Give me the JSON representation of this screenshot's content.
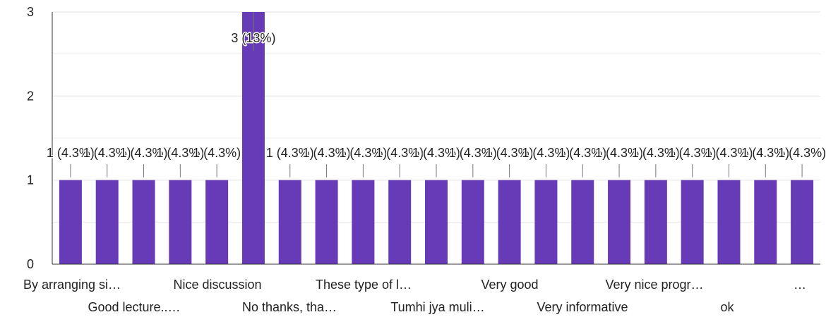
{
  "chart_data": {
    "type": "bar",
    "categories": [
      "By arranging si…",
      "Good lecture..…",
      "",
      "",
      "Nice discussion",
      "",
      "No thanks, tha…",
      "These type of l…",
      "",
      "Tumhi jya muli…",
      "",
      "Very good",
      "",
      "Very informative",
      "Very nice progr…",
      "",
      "ok",
      "",
      "",
      "…",
      ""
    ],
    "values": [
      1,
      1,
      1,
      1,
      1,
      3,
      1,
      1,
      1,
      1,
      1,
      1,
      1,
      1,
      1,
      1,
      1,
      1,
      1,
      1,
      1
    ],
    "data_labels": [
      "1 (4.3%)",
      "1 (4.3%)",
      "1 (4.3%)",
      "1 (4.3%)",
      "1 (4.3%)",
      "3 (13%)",
      "1 (4.3%)",
      "1 (4.3%)",
      "1 (4.3%)",
      "1 (4.3%)",
      "1 (4.3%)",
      "1 (4.3%)",
      "1 (4.3%)",
      "1 (4.3%)",
      "1 (4.3%)",
      "1 (4.3%)",
      "1 (4.3%)",
      "1 (4.3%)",
      "1 (4.3%)",
      "1 (4.3%)",
      "1 (4.3%)"
    ],
    "y_ticks": [
      "0",
      "1",
      "2",
      "3"
    ],
    "ylim": [
      0,
      3
    ],
    "grid": true,
    "bar_color": "#673ab7",
    "grid_color": "#e6e6e6",
    "axis_color": "#333333",
    "title": "",
    "xlabel": "",
    "ylabel": ""
  }
}
